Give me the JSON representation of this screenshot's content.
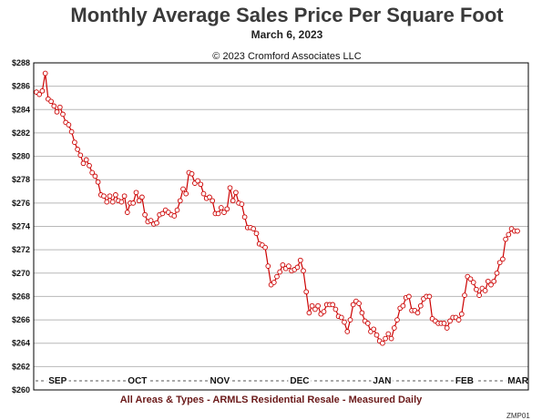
{
  "header": {
    "title": "Monthly Average Sales Price Per Square Foot",
    "date": "March 6, 2023",
    "copyright": "© 2023 Cromford Associates LLC"
  },
  "footer": {
    "caption": "All Areas & Types - ARMLS Residential Resale - Measured Daily",
    "code": "ZMP01"
  },
  "colors": {
    "line": "#cc0000",
    "marker_fill": "#ffffff",
    "grid": "#b8b8b8",
    "axis": "#000000"
  },
  "chart_data": {
    "type": "line",
    "title": "Monthly Average Sales Price Per Square Foot",
    "subtitle": "March 6, 2023",
    "xlabel": "All Areas & Types - ARMLS Residential Resale - Measured Daily",
    "ylabel": "",
    "ylim": [
      260,
      288
    ],
    "yticks": [
      260,
      262,
      264,
      266,
      268,
      270,
      272,
      274,
      276,
      278,
      280,
      282,
      284,
      286,
      288
    ],
    "ytick_labels": [
      "$260",
      "$262",
      "$264",
      "$266",
      "$268",
      "$270",
      "$272",
      "$274",
      "$276",
      "$278",
      "$280",
      "$282",
      "$284",
      "$286",
      "$288"
    ],
    "xlim": [
      "2022-09-01",
      "2023-03-06"
    ],
    "month_labels": [
      "SEP",
      "OCT",
      "NOV",
      "DEC",
      "JAN",
      "FEB",
      "MAR"
    ],
    "month_label_dates": [
      "2022-09-10",
      "2022-10-10",
      "2022-11-10",
      "2022-12-10",
      "2023-01-10",
      "2023-02-10",
      "2023-03-06"
    ],
    "grid": true,
    "markers": "open-circle",
    "series": [
      {
        "values": [
          285.5,
          285.3,
          285.6,
          287.1,
          284.9,
          284.7,
          284.3,
          283.8,
          284.2,
          283.6,
          282.9,
          282.7,
          282.1,
          281.2,
          280.6,
          280.1,
          279.4,
          279.7,
          279.2,
          278.6,
          278.3,
          277.8,
          276.7,
          276.6,
          276.1,
          276.6,
          276.1,
          276.7,
          276.2,
          276.1,
          276.6,
          275.2,
          276.0,
          276.0,
          276.9,
          276.2,
          276.5,
          275.0,
          274.4,
          274.5,
          274.2,
          274.3,
          275.0,
          275.1,
          275.4,
          275.2,
          275.0,
          274.9,
          275.4,
          276.2,
          277.2,
          276.8,
          278.6,
          278.5,
          277.7,
          277.9,
          277.6,
          276.8,
          276.4,
          276.5,
          276.2,
          275.1,
          275.1,
          275.6,
          275.2,
          275.5,
          277.3,
          276.2,
          276.9,
          276.0,
          275.9,
          274.8,
          273.9,
          273.9,
          273.8,
          273.4,
          272.5,
          272.4,
          272.2,
          270.6,
          269.0,
          269.2,
          269.7,
          270.1,
          270.7,
          270.4,
          270.6,
          270.2,
          270.3,
          270.5,
          271.1,
          270.2,
          268.4,
          266.6,
          267.2,
          266.9,
          267.2,
          266.5,
          266.7,
          267.3,
          267.3,
          267.3,
          266.9,
          266.3,
          266.2,
          265.8,
          265.0,
          266.0,
          267.3,
          267.6,
          267.4,
          266.6,
          265.9,
          265.7,
          265.0,
          265.2,
          264.7,
          264.2,
          264.0,
          264.4,
          264.8,
          264.4,
          265.3,
          266.0,
          267.0,
          267.2,
          267.9,
          268.0,
          266.8,
          266.8,
          266.6,
          267.2,
          267.8,
          268.0,
          268.0,
          266.1,
          265.9,
          265.7,
          265.7,
          265.7,
          265.3,
          265.9,
          266.2,
          266.2,
          266.0,
          266.5,
          268.1,
          269.7,
          269.5,
          269.2,
          268.6,
          268.1,
          268.7,
          268.5,
          269.3,
          269.0,
          269.3,
          270.0,
          270.9,
          271.2,
          272.9,
          273.3,
          273.8,
          273.6,
          273.6
        ]
      }
    ]
  }
}
